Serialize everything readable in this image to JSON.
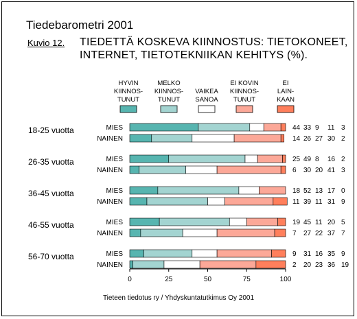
{
  "header": {
    "brand": "Tiedebarometri 2001",
    "figure_label": "Kuvio 12.",
    "title_line1": "TIEDETTÄ KOSKEVA KIINNOSTUS: TIETOKONEET,",
    "title_line2": "INTERNET, TIETOTEKNIIKAN KEHITYS (%)."
  },
  "source": "Tieteen tiedotus ry / Yhdyskuntatutkimus Oy 2001",
  "colors": [
    "#57b5b0",
    "#a3d4d1",
    "#ffffff",
    "#fca898",
    "#ff7f5c"
  ],
  "chart_data": {
    "type": "bar",
    "orientation": "horizontal",
    "stacked": true,
    "title": "TIEDETTÄ KOSKEVA KIINNOSTUS: TIETOKONEET, INTERNET, TIETOTEKNIIKAN KEHITYS (%).",
    "xlim": [
      0,
      100
    ],
    "x_ticks": [
      "0",
      "25",
      "50",
      "75",
      "100"
    ],
    "legend_position": "top",
    "legend": [
      [
        "HYVIN",
        "KIINNOS-",
        "TUNUT"
      ],
      [
        "MELKO",
        "KIINNOS-",
        "TUNUT"
      ],
      [
        "VAIKEA",
        "SANOA"
      ],
      [
        "EI KOVIN",
        "KIINNOS-",
        "TUNUT"
      ],
      [
        "EI",
        "LAIN-",
        "KAAN"
      ]
    ],
    "groups": [
      {
        "label": "18-25 vuotta",
        "rows": [
          {
            "label": "MIES",
            "values": [
              44,
              33,
              9,
              11,
              3
            ]
          },
          {
            "label": "NAINEN",
            "values": [
              14,
              26,
              27,
              30,
              2
            ]
          }
        ]
      },
      {
        "label": "26-35 vuotta",
        "rows": [
          {
            "label": "MIES",
            "values": [
              25,
              49,
              8,
              16,
              2
            ]
          },
          {
            "label": "NAINEN",
            "values": [
              6,
              30,
              20,
              41,
              3
            ]
          }
        ]
      },
      {
        "label": "36-45 vuotta",
        "rows": [
          {
            "label": "MIES",
            "values": [
              18,
              52,
              13,
              17,
              0
            ]
          },
          {
            "label": "NAINEN",
            "values": [
              11,
              39,
              11,
              31,
              9
            ]
          }
        ]
      },
      {
        "label": "46-55 vuotta",
        "rows": [
          {
            "label": "MIES",
            "values": [
              19,
              45,
              11,
              20,
              5
            ]
          },
          {
            "label": "NAINEN",
            "values": [
              7,
              27,
              22,
              37,
              7
            ]
          }
        ]
      },
      {
        "label": "56-70 vuotta",
        "rows": [
          {
            "label": "MIES",
            "values": [
              9,
              31,
              16,
              35,
              9
            ]
          },
          {
            "label": "NAINEN",
            "values": [
              2,
              20,
              23,
              36,
              19
            ]
          }
        ]
      }
    ]
  }
}
